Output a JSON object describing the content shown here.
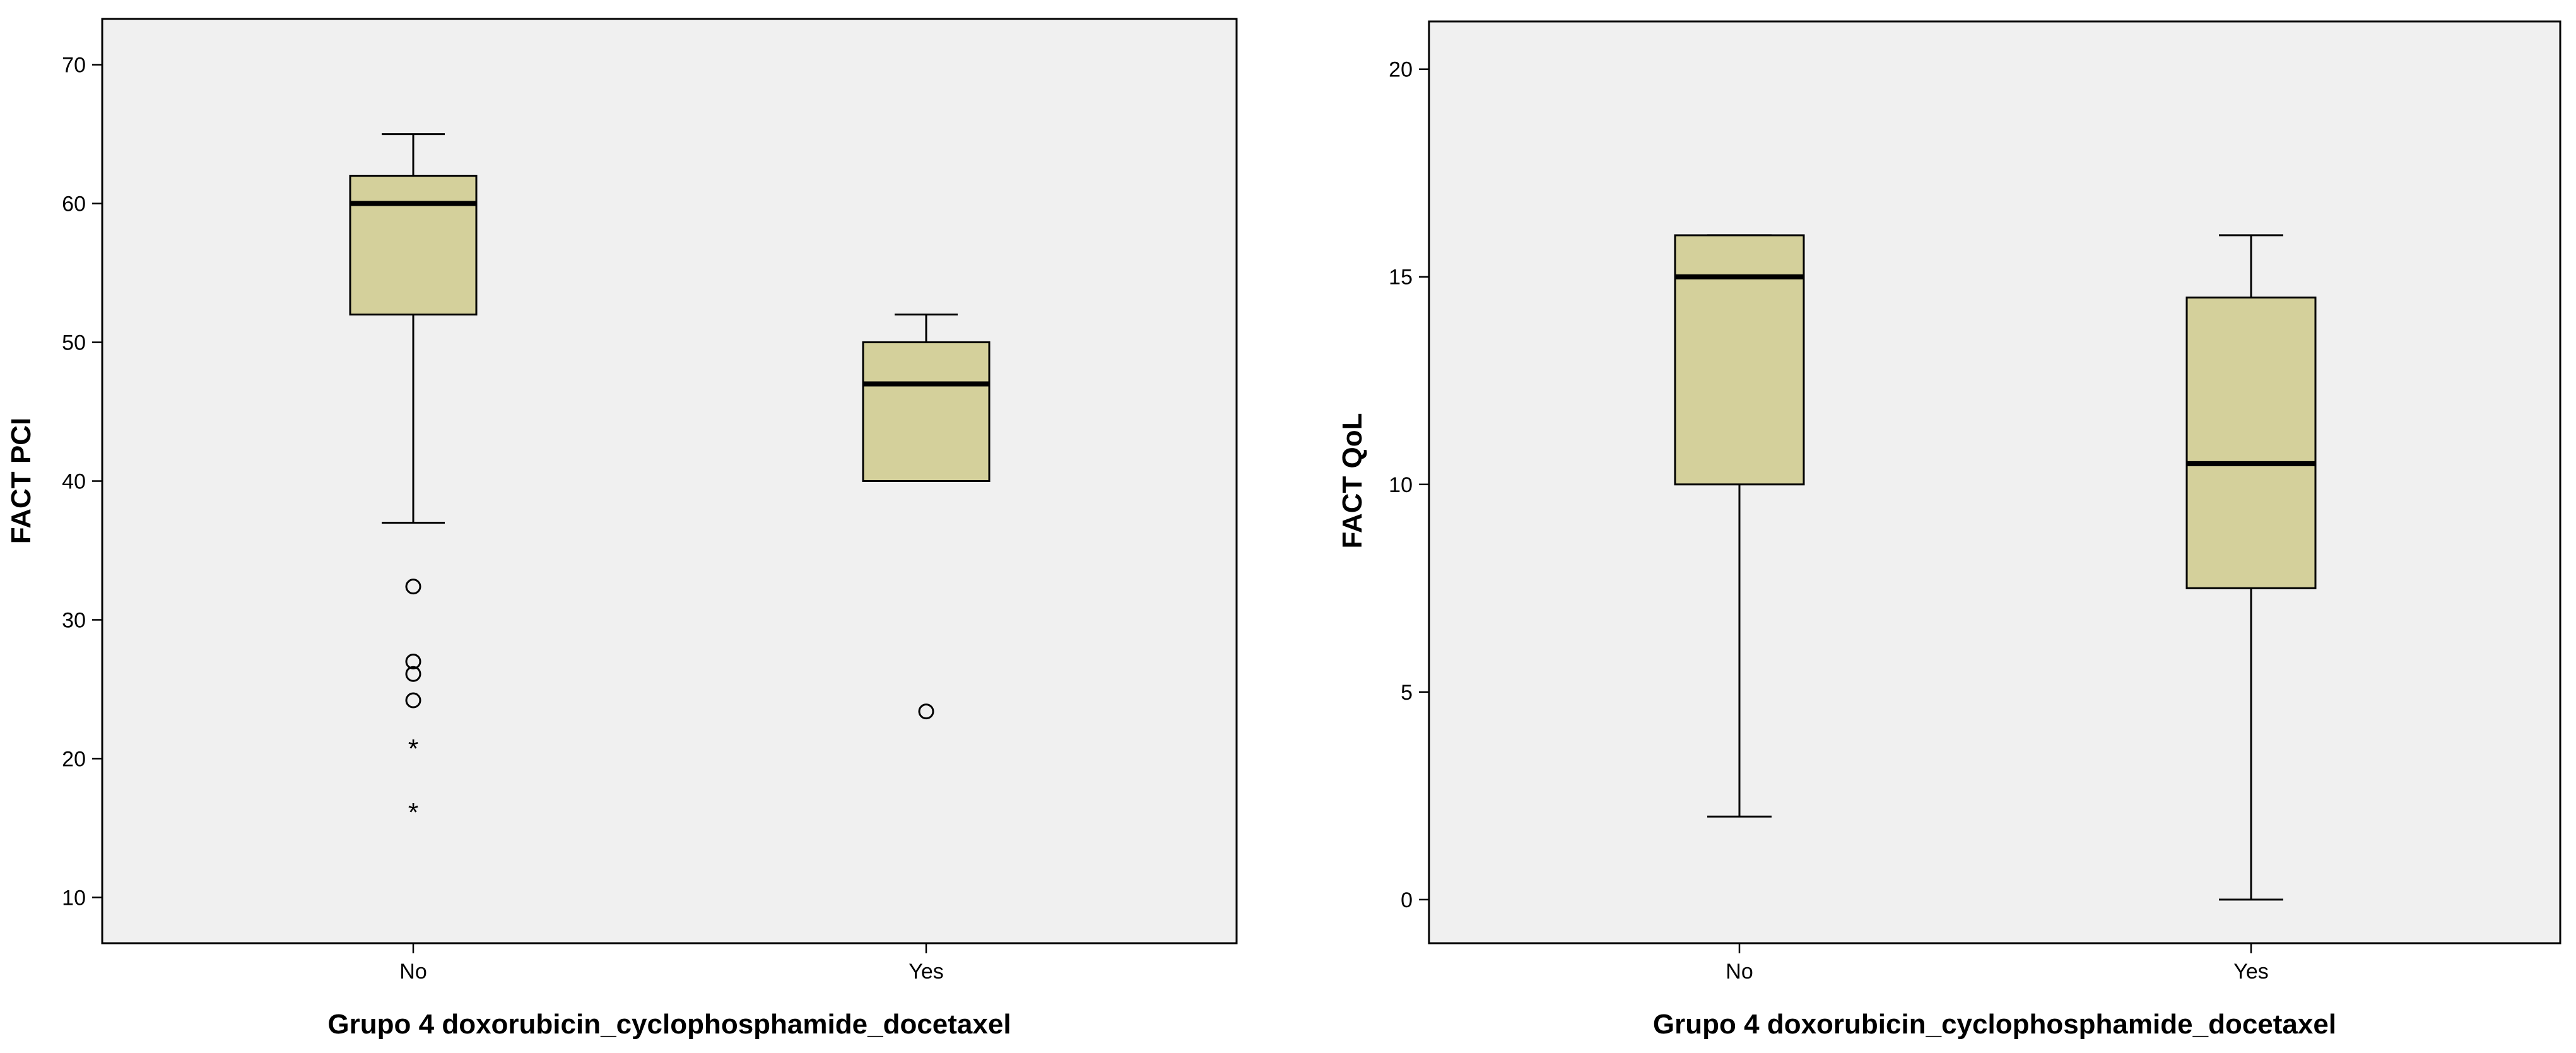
{
  "colors": {
    "plot_background": "#f0f0f0",
    "box_fill": "#d4d09b",
    "box_stroke": "#000000",
    "page_background": "#ffffff"
  },
  "chart_data": [
    {
      "type": "box",
      "xlabel": "Grupo 4 doxorubicin_cyclophosphamide_docetaxel",
      "ylabel": "FACT PCI",
      "ylim": [
        6.7,
        73.3
      ],
      "yticks": [
        10,
        20,
        30,
        40,
        50,
        60,
        70
      ],
      "grid": false,
      "categories": [
        "No",
        "Yes"
      ],
      "boxes": [
        {
          "category": "No",
          "whisker_low": 37,
          "q1": 52,
          "median": 60,
          "q3": 62,
          "whisker_high": 65,
          "outliers": [
            32.4,
            27.0,
            26.1,
            24.2
          ],
          "extremes": [
            20.8,
            16.2
          ]
        },
        {
          "category": "Yes",
          "whisker_low": 40,
          "q1": 40,
          "median": 47,
          "q3": 50,
          "whisker_high": 52,
          "outliers": [
            23.4
          ],
          "extremes": []
        }
      ]
    },
    {
      "type": "box",
      "xlabel": "Grupo 4 doxorubicin_cyclophosphamide_docetaxel",
      "ylabel": "FACT QoL",
      "ylim": [
        -1.05,
        21.15
      ],
      "yticks": [
        0,
        5,
        10,
        15,
        20
      ],
      "grid": false,
      "categories": [
        "No",
        "Yes"
      ],
      "boxes": [
        {
          "category": "No",
          "whisker_low": 2,
          "q1": 10,
          "median": 15,
          "q3": 16,
          "whisker_high": 16,
          "outliers": [],
          "extremes": []
        },
        {
          "category": "Yes",
          "whisker_low": 0,
          "q1": 7.5,
          "median": 10.5,
          "q3": 14.5,
          "whisker_high": 16,
          "outliers": [],
          "extremes": []
        }
      ]
    }
  ]
}
